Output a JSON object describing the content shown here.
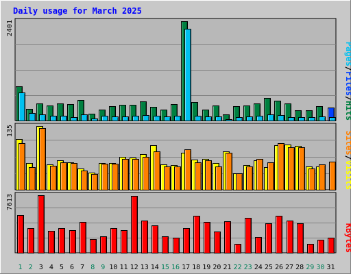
{
  "chart_data": {
    "type": "bar",
    "title": "Daily usage for March 2025",
    "days": [
      "1",
      "2",
      "3",
      "4",
      "5",
      "6",
      "7",
      "8",
      "9",
      "10",
      "11",
      "12",
      "13",
      "14",
      "15",
      "16",
      "17",
      "18",
      "19",
      "20",
      "21",
      "22",
      "23",
      "24",
      "25",
      "26",
      "27",
      "28",
      "29",
      "30",
      "31"
    ],
    "weekend_days": [
      1,
      2,
      8,
      9,
      15,
      16,
      22,
      23,
      29,
      30
    ],
    "panels": [
      {
        "name": "hits-files-pages",
        "max_label": "2401",
        "max": 2401,
        "labels": [
          {
            "text": "Pages",
            "color": "#00c0f0"
          },
          {
            "text": "Files",
            "color": "#0040ff"
          },
          {
            "text": "Hits",
            "color": "#008040"
          }
        ],
        "series": [
          {
            "name": "Hits",
            "color": "#008040",
            "values": [
              830,
              280,
              420,
              360,
              410,
              400,
              490,
              160,
              260,
              350,
              380,
              375,
              470,
              330,
              260,
              400,
              2401,
              440,
              260,
              360,
              150,
              345,
              370,
              410,
              550,
              480,
              410,
              250,
              245,
              340,
              0
            ]
          },
          {
            "name": "Files",
            "color": "#0040ff",
            "values": [
              0,
              0,
              0,
              0,
              0,
              0,
              0,
              0,
              0,
              0,
              0,
              0,
              0,
              0,
              0,
              0,
              0,
              0,
              0,
              0,
              0,
              0,
              0,
              0,
              0,
              0,
              0,
              0,
              0,
              0,
              310
            ]
          },
          {
            "name": "Pages",
            "color": "#00c0f0",
            "values": [
              680,
              190,
              150,
              110,
              110,
              90,
              150,
              50,
              120,
              100,
              95,
              110,
              140,
              110,
              95,
              110,
              2220,
              120,
              100,
              95,
              40,
              90,
              95,
              110,
              150,
              130,
              85,
              85,
              75,
              100,
              80
            ]
          }
        ]
      },
      {
        "name": "visits-sites",
        "max_label": "135",
        "max": 135,
        "labels": [
          {
            "text": "Sites",
            "color": "#ff8000"
          },
          {
            "text": "Visits",
            "color": "#ffff00"
          }
        ],
        "series": [
          {
            "name": "Visits",
            "color": "#ffff00",
            "values": [
              108,
              56,
              135,
              53,
              62,
              58,
              45,
              36,
              56,
              56,
              70,
              68,
              75,
              95,
              53,
              52,
              78,
              64,
              65,
              56,
              82,
              35,
              52,
              62,
              48,
              95,
              96,
              93,
              49,
              50,
              0
            ]
          },
          {
            "name": "Sites",
            "color": "#ff8000",
            "values": [
              98,
              48,
              130,
              51,
              58,
              56,
              40,
              34,
              55,
              55,
              65,
              66,
              70,
              82,
              50,
              50,
              85,
              58,
              62,
              50,
              78,
              35,
              49,
              65,
              58,
              98,
              90,
              90,
              45,
              54,
              60
            ]
          }
        ]
      },
      {
        "name": "kbytes",
        "max_label": "7613",
        "max": 7613,
        "labels": [
          {
            "text": "KBytes",
            "color": "#ff0000"
          }
        ],
        "series": [
          {
            "name": "KBytes",
            "color": "#ff0000",
            "values": [
              5000,
              3300,
              7613,
              2900,
              3300,
              3000,
              4100,
              1800,
              2200,
              3300,
              3000,
              7500,
              4300,
              3600,
              2200,
              2000,
              3300,
              4900,
              4100,
              2800,
              4200,
              1200,
              4600,
              2100,
              3900,
              4900,
              4300,
              3900,
              1200,
              1700,
              2000
            ]
          }
        ]
      }
    ]
  }
}
